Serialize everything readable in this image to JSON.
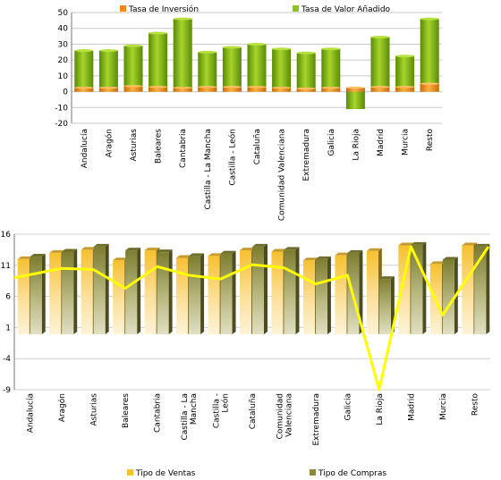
{
  "chart_data": [
    {
      "type": "bar",
      "categories": [
        "Andalucía",
        "Aragón",
        "Asturias",
        "Baleares",
        "Cantabria",
        "Castilla - La Mancha",
        "Castilla - León",
        "Cataluña",
        "Comunidad Valenciana",
        "Extremadura",
        "Galicia",
        "La Rioja",
        "Madrid",
        "Murcia",
        "Resto"
      ],
      "series": [
        {
          "name": "Tasa de Inversión",
          "values": [
            2.5,
            2.5,
            3.5,
            3,
            2.5,
            3,
            3,
            3,
            2.5,
            2,
            2.5,
            2.5,
            3,
            3,
            5
          ],
          "color": "#ee8a1e"
        },
        {
          "name": "Tasa de Valor Añadido",
          "values": [
            26,
            26,
            29,
            37,
            46,
            25,
            28,
            30,
            27,
            24.5,
            27,
            -11,
            34.5,
            22.5,
            46
          ],
          "color": "#8fc21a"
        }
      ],
      "ylim": [
        -20,
        50
      ],
      "yticks": [
        -20,
        -10,
        0,
        10,
        20,
        30,
        40,
        50
      ],
      "grid": true,
      "legend": "top"
    },
    {
      "type": "bar",
      "categories": [
        "Andalucía",
        "Aragón",
        "Asturias",
        "Baleares",
        "Cantabria",
        "Castilla - La Mancha",
        "Castilla - León",
        "Cataluña",
        "Comunidad Valenciana",
        "Extremadura",
        "Galicia",
        "La Rioja",
        "Madrid",
        "Murcia",
        "Resto"
      ],
      "category_lines": [
        [
          "Andalucía"
        ],
        [
          "Aragón"
        ],
        [
          "Asturias"
        ],
        [
          "Baleares"
        ],
        [
          "Cantabria"
        ],
        [
          "Castilla - La",
          "Mancha"
        ],
        [
          "Castilla -",
          "León"
        ],
        [
          "Cataluña"
        ],
        [
          "Comunidad",
          "Valenciana"
        ],
        [
          "Extremadura"
        ],
        [
          "Galicia"
        ],
        [
          "La Rioja"
        ],
        [
          "Madrid"
        ],
        [
          "Murcia"
        ],
        [
          "Resto"
        ]
      ],
      "series": [
        {
          "name": "Tipo de Ventas",
          "values": [
            12,
            13,
            13.5,
            11.8,
            13.4,
            12.2,
            12.5,
            13.4,
            13.2,
            11.8,
            12.6,
            13.3,
            14.2,
            11.2,
            14.2
          ],
          "color": "#f5c23a"
        },
        {
          "name": "Tipo de Compras",
          "values": [
            12.4,
            13.2,
            14,
            13.4,
            13.1,
            12.5,
            12.9,
            14,
            13.5,
            12,
            13,
            8.8,
            14.3,
            11.9,
            14
          ],
          "color": "#8a8a3a"
        }
      ],
      "line_series": {
        "values": [
          9,
          10.5,
          10.3,
          7.3,
          10.8,
          9.4,
          8.8,
          11.1,
          10.6,
          8,
          9.4,
          -9,
          14,
          3,
          14
        ],
        "color": "#ffff00"
      },
      "ylim": [
        -9,
        16
      ],
      "yticks": [
        -9,
        -4,
        1,
        6,
        11,
        16
      ],
      "grid": true,
      "legend": "bottom"
    }
  ]
}
